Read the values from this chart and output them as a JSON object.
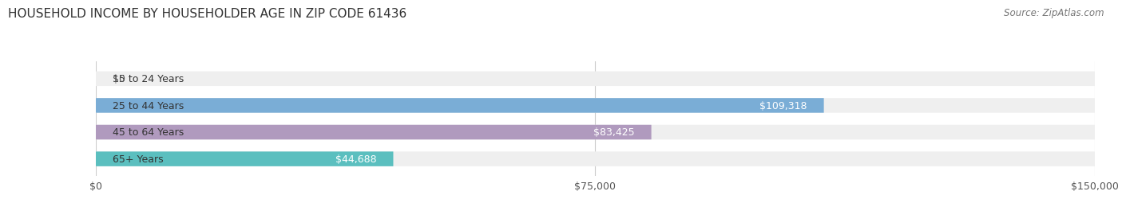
{
  "title": "HOUSEHOLD INCOME BY HOUSEHOLDER AGE IN ZIP CODE 61436",
  "source": "Source: ZipAtlas.com",
  "categories": [
    "15 to 24 Years",
    "25 to 44 Years",
    "45 to 64 Years",
    "65+ Years"
  ],
  "values": [
    0,
    109318,
    83425,
    44688
  ],
  "labels": [
    "$0",
    "$109,318",
    "$83,425",
    "$44,688"
  ],
  "bar_colors": [
    "#f4a0a0",
    "#7aadd6",
    "#b09abe",
    "#5bbfbf"
  ],
  "bar_bg_color": "#efefef",
  "xlim": [
    0,
    150000
  ],
  "xtick_values": [
    0,
    75000,
    150000
  ],
  "xtick_labels": [
    "$0",
    "$75,000",
    "$150,000"
  ],
  "title_fontsize": 11,
  "source_fontsize": 8.5,
  "label_fontsize": 9,
  "cat_fontsize": 9,
  "bar_height": 0.55,
  "bg_color": "#ffffff"
}
